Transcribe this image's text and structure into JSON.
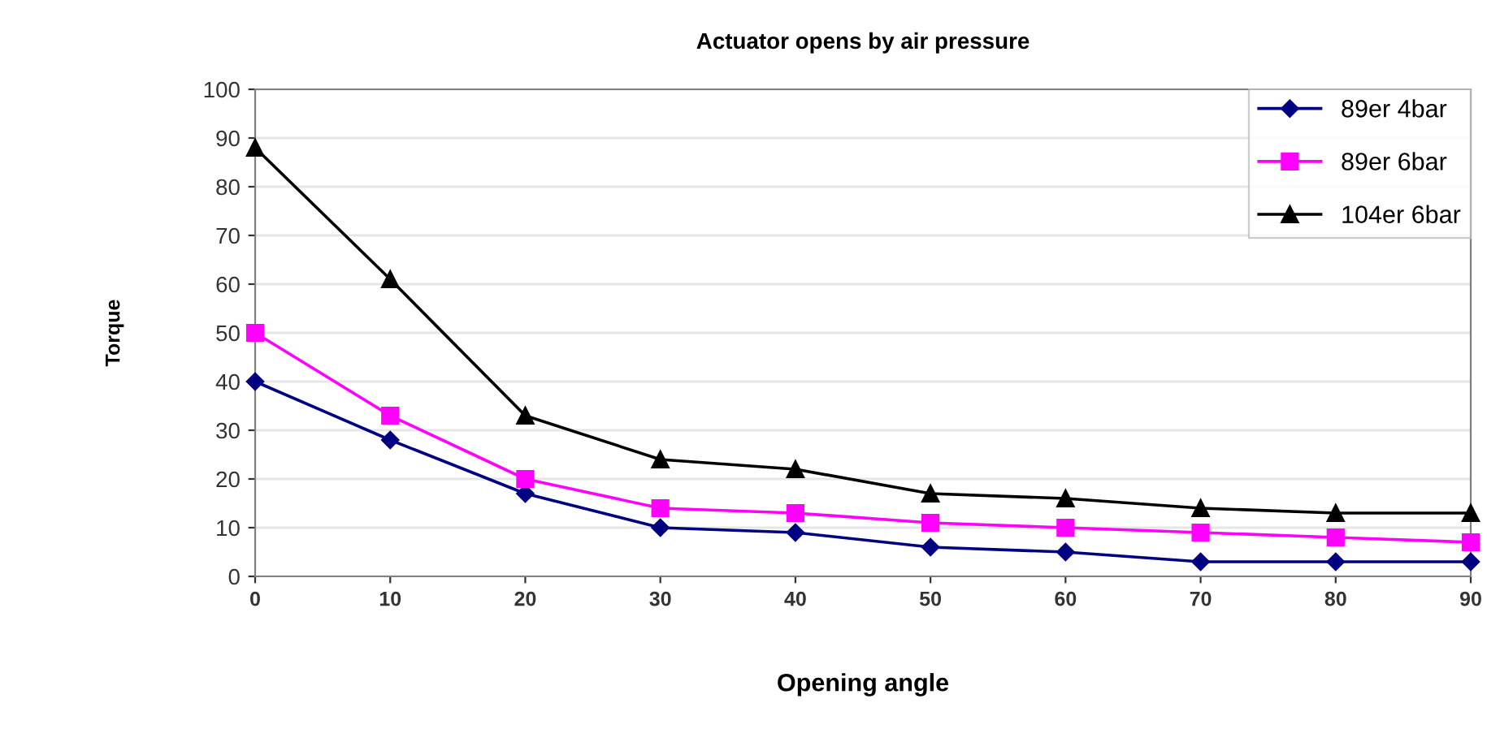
{
  "chart_data": {
    "type": "line",
    "title": "Actuator opens by air pressure",
    "xlabel": "Opening angle",
    "ylabel": "Torque",
    "x": [
      0,
      10,
      20,
      30,
      40,
      50,
      60,
      70,
      80,
      90
    ],
    "series": [
      {
        "name": "89er 4bar",
        "color": "#000080",
        "marker": "diamond",
        "values": [
          40,
          28,
          17,
          10,
          9,
          6,
          5,
          3,
          3,
          3
        ]
      },
      {
        "name": "89er 6bar",
        "color": "#ff00ff",
        "marker": "square",
        "values": [
          50,
          33,
          20,
          14,
          13,
          11,
          10,
          9,
          8,
          7
        ]
      },
      {
        "name": "104er 6bar",
        "color": "#000000",
        "marker": "triangle",
        "values": [
          88,
          61,
          33,
          24,
          22,
          17,
          16,
          14,
          13,
          13
        ]
      }
    ],
    "xlim": [
      0,
      90
    ],
    "xticks": [
      0,
      10,
      20,
      30,
      40,
      50,
      60,
      70,
      80,
      90
    ],
    "ylim": [
      0,
      100
    ],
    "yticks": [
      0,
      10,
      20,
      30,
      40,
      50,
      60,
      70,
      80,
      90,
      100
    ],
    "grid": "y",
    "legend": "top right",
    "line_style": "solid"
  }
}
